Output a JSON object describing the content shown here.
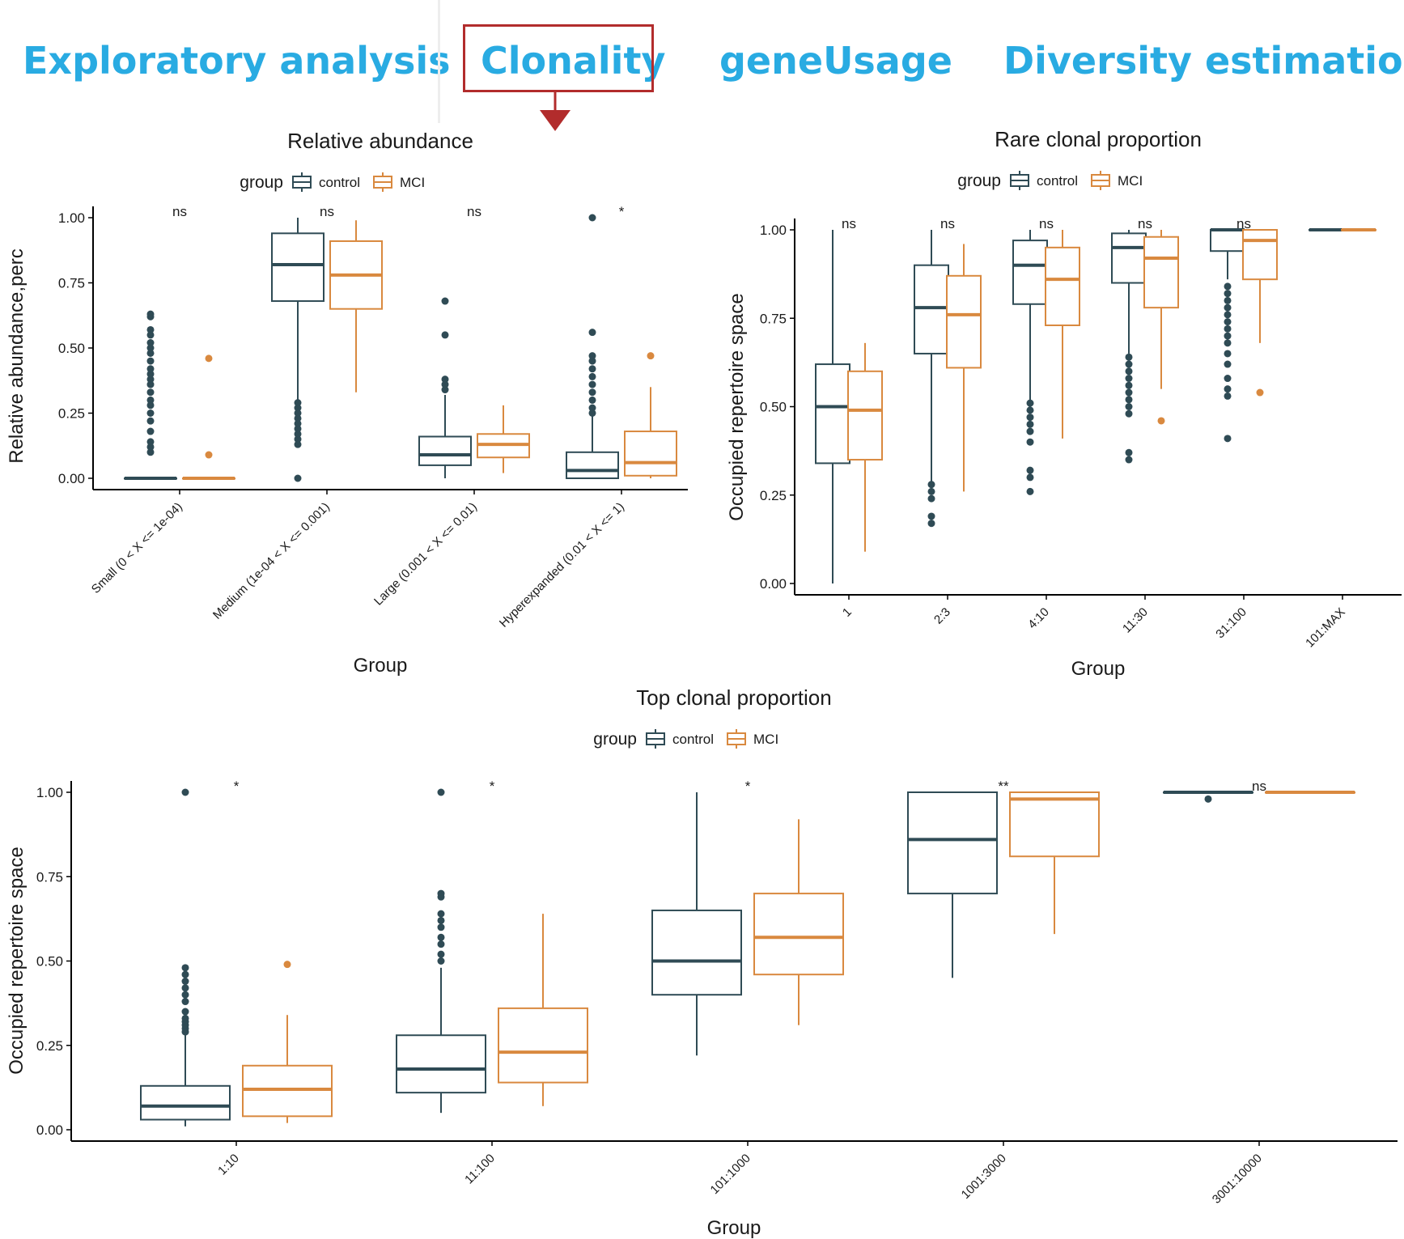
{
  "tabs": {
    "items": [
      {
        "label": "Exploratory analysis"
      },
      {
        "label": "Clonality"
      },
      {
        "label": "geneUsage"
      },
      {
        "label": "Diversity estimation"
      }
    ],
    "active_index": 1,
    "tab_color": "#29abe2",
    "highlight_color": "#b22c2c"
  },
  "colors": {
    "control": "#2f4b55",
    "MCI": "#d9893f"
  },
  "chart_data": [
    {
      "type": "box",
      "title": "Relative abundance",
      "xlabel": "Group",
      "ylabel": "Relative abundance,perc",
      "ylim": [
        0,
        1
      ],
      "yticks": [
        "0.00",
        "0.25",
        "0.50",
        "0.75",
        "1.00"
      ],
      "legend": {
        "title": "group",
        "items": [
          "control",
          "MCI"
        ],
        "position": "top"
      },
      "categories": [
        "Small (0 < X <= 1e-04)",
        "Medium (1e-04 < X <= 0.001)",
        "Large (0.001 < X <= 0.01)",
        "Hyperexpanded (0.01 < X <= 1)"
      ],
      "significance": [
        "ns",
        "ns",
        "ns",
        "*"
      ],
      "series": [
        {
          "name": "control",
          "boxes": [
            {
              "min": 0,
              "q1": 0,
              "median": 0,
              "q3": 0,
              "max": 0,
              "outliers": [
                0.1,
                0.12,
                0.14,
                0.18,
                0.22,
                0.25,
                0.28,
                0.3,
                0.33,
                0.36,
                0.38,
                0.4,
                0.42,
                0.45,
                0.48,
                0.5,
                0.52,
                0.55,
                0.57,
                0.62,
                0.63
              ]
            },
            {
              "min": 0.3,
              "q1": 0.68,
              "median": 0.82,
              "q3": 0.94,
              "max": 1.0,
              "outliers": [
                0.0,
                0.13,
                0.15,
                0.17,
                0.19,
                0.21,
                0.23,
                0.25,
                0.27,
                0.29
              ]
            },
            {
              "min": 0.0,
              "q1": 0.05,
              "median": 0.09,
              "q3": 0.16,
              "max": 0.32,
              "outliers": [
                0.34,
                0.36,
                0.38,
                0.55,
                0.68
              ]
            },
            {
              "min": 0.0,
              "q1": 0.0,
              "median": 0.03,
              "q3": 0.1,
              "max": 0.24,
              "outliers": [
                0.25,
                0.27,
                0.3,
                0.33,
                0.36,
                0.39,
                0.42,
                0.45,
                0.47,
                0.56,
                1.0
              ]
            }
          ]
        },
        {
          "name": "MCI",
          "boxes": [
            {
              "min": 0,
              "q1": 0,
              "median": 0,
              "q3": 0,
              "max": 0,
              "outliers": [
                0.09,
                0.46
              ]
            },
            {
              "min": 0.33,
              "q1": 0.65,
              "median": 0.78,
              "q3": 0.91,
              "max": 0.99,
              "outliers": []
            },
            {
              "min": 0.02,
              "q1": 0.08,
              "median": 0.13,
              "q3": 0.17,
              "max": 0.28,
              "outliers": []
            },
            {
              "min": 0.0,
              "q1": 0.01,
              "median": 0.06,
              "q3": 0.18,
              "max": 0.35,
              "outliers": [
                0.47
              ]
            }
          ]
        }
      ]
    },
    {
      "type": "box",
      "title": "Rare clonal proportion",
      "xlabel": "Group",
      "ylabel": "Occupied repertoire space",
      "ylim": [
        0,
        1
      ],
      "yticks": [
        "0.00",
        "0.25",
        "0.50",
        "0.75",
        "1.00"
      ],
      "legend": {
        "title": "group",
        "items": [
          "control",
          "MCI"
        ],
        "position": "top"
      },
      "categories": [
        "1",
        "2:3",
        "4:10",
        "11:30",
        "31:100",
        "101:MAX"
      ],
      "significance": [
        "ns",
        "ns",
        "ns",
        "ns",
        "ns",
        ""
      ],
      "series": [
        {
          "name": "control",
          "boxes": [
            {
              "min": 0.0,
              "q1": 0.34,
              "median": 0.5,
              "q3": 0.62,
              "max": 1.0,
              "outliers": []
            },
            {
              "min": 0.28,
              "q1": 0.65,
              "median": 0.78,
              "q3": 0.9,
              "max": 1.0,
              "outliers": [
                0.17,
                0.19,
                0.24,
                0.26,
                0.28
              ]
            },
            {
              "min": 0.5,
              "q1": 0.79,
              "median": 0.9,
              "q3": 0.97,
              "max": 1.0,
              "outliers": [
                0.26,
                0.3,
                0.32,
                0.4,
                0.43,
                0.45,
                0.47,
                0.49,
                0.51
              ]
            },
            {
              "min": 0.65,
              "q1": 0.85,
              "median": 0.95,
              "q3": 0.99,
              "max": 1.0,
              "outliers": [
                0.35,
                0.37,
                0.48,
                0.5,
                0.52,
                0.54,
                0.56,
                0.58,
                0.6,
                0.62,
                0.64
              ]
            },
            {
              "min": 0.86,
              "q1": 0.94,
              "median": 1.0,
              "q3": 1.0,
              "max": 1.0,
              "outliers": [
                0.41,
                0.53,
                0.55,
                0.58,
                0.62,
                0.65,
                0.68,
                0.7,
                0.72,
                0.74,
                0.76,
                0.78,
                0.8,
                0.82,
                0.84
              ]
            },
            {
              "min": 1.0,
              "q1": 1.0,
              "median": 1.0,
              "q3": 1.0,
              "max": 1.0,
              "outliers": []
            }
          ]
        },
        {
          "name": "MCI",
          "boxes": [
            {
              "min": 0.09,
              "q1": 0.35,
              "median": 0.49,
              "q3": 0.6,
              "max": 0.68,
              "outliers": []
            },
            {
              "min": 0.26,
              "q1": 0.61,
              "median": 0.76,
              "q3": 0.87,
              "max": 0.96,
              "outliers": []
            },
            {
              "min": 0.41,
              "q1": 0.73,
              "median": 0.86,
              "q3": 0.95,
              "max": 1.0,
              "outliers": []
            },
            {
              "min": 0.55,
              "q1": 0.78,
              "median": 0.92,
              "q3": 0.98,
              "max": 1.0,
              "outliers": [
                0.46
              ]
            },
            {
              "min": 0.68,
              "q1": 0.86,
              "median": 0.97,
              "q3": 1.0,
              "max": 1.0,
              "outliers": [
                0.54
              ]
            },
            {
              "min": 1.0,
              "q1": 1.0,
              "median": 1.0,
              "q3": 1.0,
              "max": 1.0,
              "outliers": []
            }
          ]
        }
      ]
    },
    {
      "type": "box",
      "title": "Top clonal proportion",
      "xlabel": "Group",
      "ylabel": "Occupied repertoire space",
      "ylim": [
        0,
        1
      ],
      "yticks": [
        "0.00",
        "0.25",
        "0.50",
        "0.75",
        "1.00"
      ],
      "legend": {
        "title": "group",
        "items": [
          "control",
          "MCI"
        ],
        "position": "top"
      },
      "categories": [
        "1:10",
        "11:100",
        "101:1000",
        "1001:3000",
        "3001:10000"
      ],
      "significance": [
        "*",
        "*",
        "*",
        "**",
        "ns"
      ],
      "series": [
        {
          "name": "control",
          "boxes": [
            {
              "min": 0.01,
              "q1": 0.03,
              "median": 0.07,
              "q3": 0.13,
              "max": 0.28,
              "outliers": [
                0.29,
                0.3,
                0.31,
                0.32,
                0.33,
                0.35,
                0.38,
                0.4,
                0.42,
                0.44,
                0.46,
                0.48,
                1.0
              ]
            },
            {
              "min": 0.05,
              "q1": 0.11,
              "median": 0.18,
              "q3": 0.28,
              "max": 0.48,
              "outliers": [
                0.5,
                0.52,
                0.55,
                0.57,
                0.6,
                0.62,
                0.64,
                0.69,
                0.7,
                1.0
              ]
            },
            {
              "min": 0.22,
              "q1": 0.4,
              "median": 0.5,
              "q3": 0.65,
              "max": 1.0,
              "outliers": []
            },
            {
              "min": 0.45,
              "q1": 0.7,
              "median": 0.86,
              "q3": 1.0,
              "max": 1.0,
              "outliers": []
            },
            {
              "min": 1.0,
              "q1": 1.0,
              "median": 1.0,
              "q3": 1.0,
              "max": 1.0,
              "outliers": [
                0.98
              ]
            }
          ]
        },
        {
          "name": "MCI",
          "boxes": [
            {
              "min": 0.02,
              "q1": 0.04,
              "median": 0.12,
              "q3": 0.19,
              "max": 0.34,
              "outliers": [
                0.49
              ]
            },
            {
              "min": 0.07,
              "q1": 0.14,
              "median": 0.23,
              "q3": 0.36,
              "max": 0.64,
              "outliers": []
            },
            {
              "min": 0.31,
              "q1": 0.46,
              "median": 0.57,
              "q3": 0.7,
              "max": 0.92,
              "outliers": []
            },
            {
              "min": 0.58,
              "q1": 0.81,
              "median": 0.98,
              "q3": 1.0,
              "max": 1.0,
              "outliers": []
            },
            {
              "min": 1.0,
              "q1": 1.0,
              "median": 1.0,
              "q3": 1.0,
              "max": 1.0,
              "outliers": []
            }
          ]
        }
      ]
    }
  ]
}
